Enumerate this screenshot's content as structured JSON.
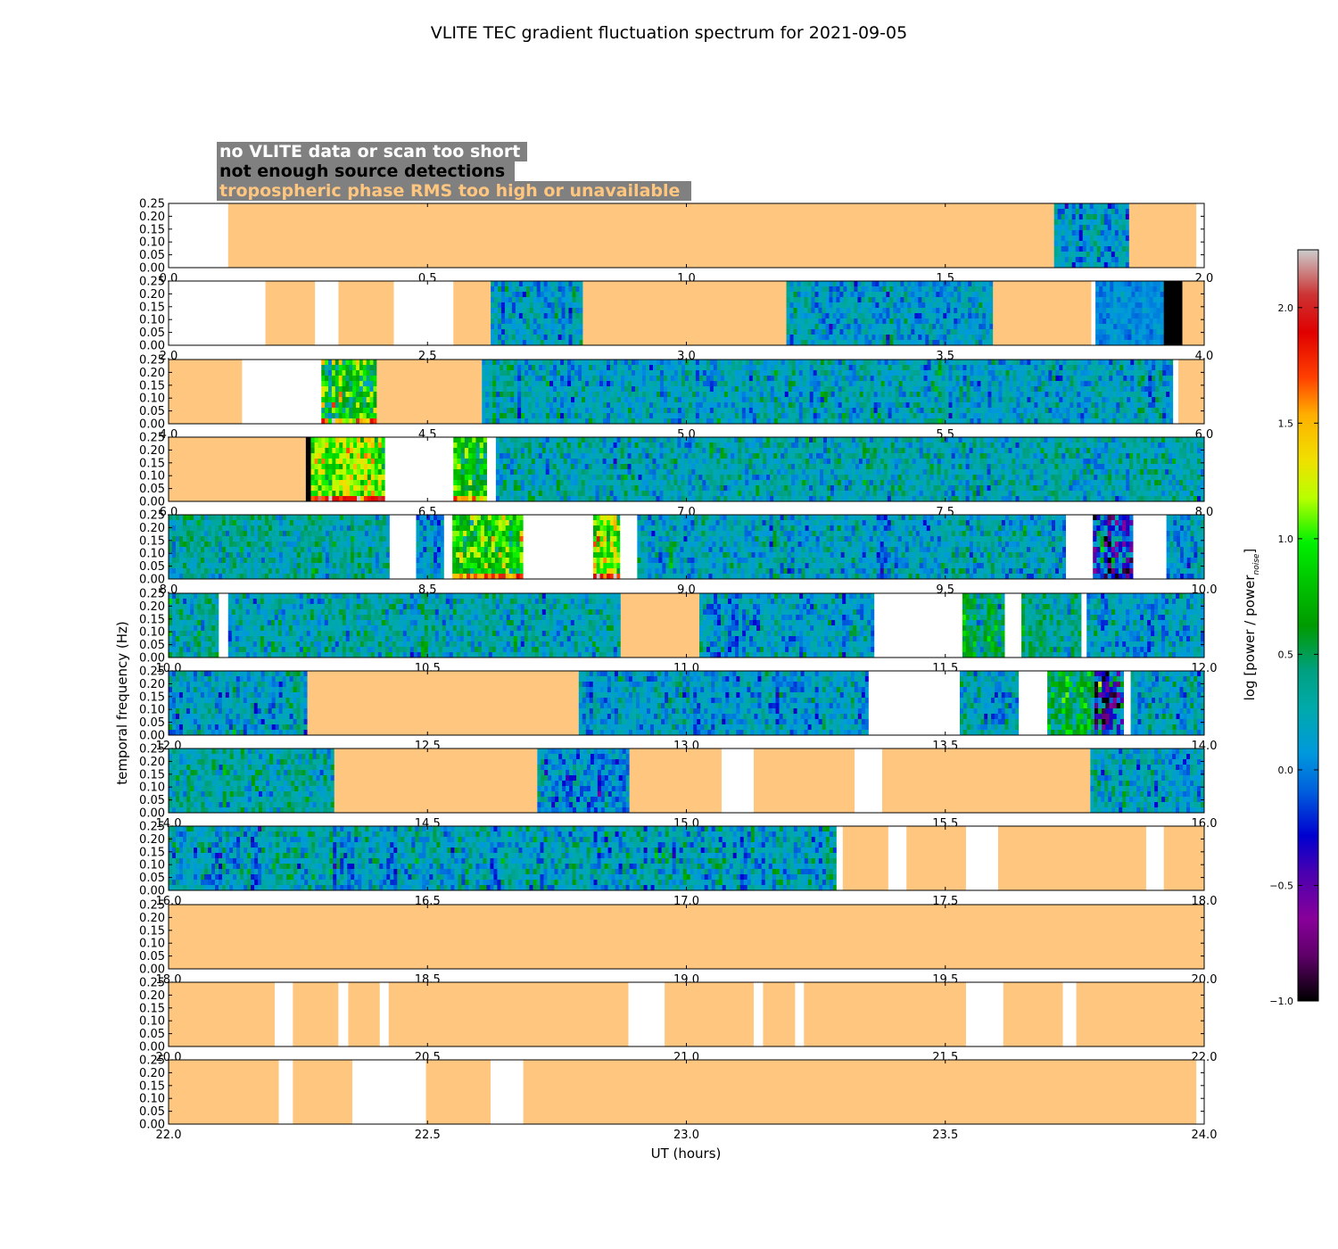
{
  "chart_data": {
    "type": "heatmap",
    "title": "VLITE TEC gradient fluctuation spectrum for 2021-09-05",
    "xlabel": "UT (hours)",
    "ylabel": "temporal frequency (Hz)",
    "colorbar_label": "log [power / power",
    "colorbar_label_sub": "noise",
    "colorbar_label_end": "]",
    "colorbar_range": [
      -1.0,
      2.25
    ],
    "colorbar_ticks": [
      "2.0",
      "1.5",
      "1.0",
      "0.5",
      "0.0",
      "−0.5",
      "−1.0"
    ],
    "colorbar_tick_values": [
      2.0,
      1.5,
      1.0,
      0.5,
      0.0,
      -0.5,
      -1.0
    ],
    "colormap": "nipy_spectral",
    "ylim": [
      0.0,
      0.25
    ],
    "y_ticks": [
      "0.00",
      "0.05",
      "0.10",
      "0.15",
      "0.20",
      "0.25"
    ],
    "legend": [
      {
        "label": "no VLITE data or scan too short",
        "color": "#ffffff"
      },
      {
        "label": "not enough source detections",
        "color": "#000000"
      },
      {
        "label": "tropospheric phase RMS too high or unavailable",
        "color": "#ffc67f"
      }
    ],
    "legend_box_color": "#808080",
    "category_colors": {
      "tropo": "#ffc67f",
      "nodet": "#000000",
      "nodata": "#ffffff"
    },
    "panels": [
      {
        "xlim": [
          0,
          2
        ],
        "ticks": [
          "0.0",
          "0.5",
          "1.0",
          "1.5",
          "2.0"
        ],
        "segments": [
          [
            "nodata",
            0.0,
            0.115
          ],
          [
            "tropo",
            0.115,
            1.71
          ],
          [
            "data",
            1.71,
            1.855,
            0.15,
            0.35
          ],
          [
            "tropo",
            1.855,
            1.985
          ],
          [
            "nodata",
            1.985,
            2.0
          ]
        ]
      },
      {
        "xlim": [
          2,
          4
        ],
        "ticks": [
          "2.0",
          "2.5",
          "3.0",
          "3.5",
          "4.0"
        ],
        "segments": [
          [
            "nodata",
            2.0,
            2.187
          ],
          [
            "tropo",
            2.187,
            2.283
          ],
          [
            "nodata",
            2.283,
            2.328
          ],
          [
            "tropo",
            2.328,
            2.435
          ],
          [
            "nodata",
            2.435,
            2.55
          ],
          [
            "tropo",
            2.55,
            2.622
          ],
          [
            "data",
            2.622,
            2.8,
            0.15,
            0.35
          ],
          [
            "tropo",
            2.8,
            3.193
          ],
          [
            "data",
            3.193,
            3.592,
            0.15,
            0.35
          ],
          [
            "tropo",
            3.592,
            3.782
          ],
          [
            "nodata",
            3.782,
            3.79
          ],
          [
            "data",
            3.79,
            3.922,
            0.05,
            0.15
          ],
          [
            "nodet",
            3.922,
            3.958
          ],
          [
            "tropo",
            3.958,
            4.0
          ]
        ]
      },
      {
        "xlim": [
          4,
          6
        ],
        "ticks": [
          "4.0",
          "4.5",
          "5.0",
          "5.5",
          "6.0"
        ],
        "segments": [
          [
            "tropo",
            4.0,
            4.142
          ],
          [
            "nodata",
            4.142,
            4.295
          ],
          [
            "data",
            4.295,
            4.402,
            0.85,
            0.6
          ],
          [
            "tropo",
            4.402,
            4.605
          ],
          [
            "data",
            4.605,
            5.94,
            0.2,
            0.35
          ],
          [
            "nodata",
            5.94,
            5.95
          ],
          [
            "tropo",
            5.95,
            6.0
          ]
        ]
      },
      {
        "xlim": [
          6,
          8
        ],
        "ticks": [
          "6.0",
          "6.5",
          "7.0",
          "7.5",
          "8.0"
        ],
        "segments": [
          [
            "tropo",
            6.0,
            6.265
          ],
          [
            "nodet",
            6.265,
            6.275
          ],
          [
            "data",
            6.275,
            6.418,
            1.1,
            0.45
          ],
          [
            "nodata",
            6.418,
            6.55
          ],
          [
            "data",
            6.55,
            6.615,
            0.75,
            0.45
          ],
          [
            "nodata",
            6.615,
            6.632
          ],
          [
            "data",
            6.632,
            8.0,
            0.25,
            0.35
          ]
        ]
      },
      {
        "xlim": [
          8,
          10
        ],
        "ticks": [
          "8.0",
          "8.5",
          "9.0",
          "9.5",
          "10.0"
        ],
        "segments": [
          [
            "data",
            8.0,
            8.427,
            0.3,
            0.35
          ],
          [
            "nodata",
            8.427,
            8.478
          ],
          [
            "data",
            8.478,
            8.532,
            0.1,
            0.35
          ],
          [
            "nodata",
            8.532,
            8.548
          ],
          [
            "data",
            8.548,
            8.685,
            0.85,
            0.5
          ],
          [
            "nodata",
            8.685,
            8.82
          ],
          [
            "data",
            8.82,
            8.872,
            1.1,
            0.5
          ],
          [
            "nodata",
            8.872,
            8.905
          ],
          [
            "data",
            8.905,
            9.733,
            0.2,
            0.35
          ],
          [
            "nodata",
            9.733,
            9.785
          ],
          [
            "data",
            9.785,
            9.863,
            -0.2,
            0.85
          ],
          [
            "nodata",
            9.863,
            9.927
          ],
          [
            "data",
            9.927,
            10.0,
            0.15,
            0.35
          ]
        ]
      },
      {
        "xlim": [
          10,
          12
        ],
        "ticks": [
          "10.0",
          "10.5",
          "11.0",
          "11.5",
          "12.0"
        ],
        "segments": [
          [
            "data",
            10.0,
            10.097,
            0.3,
            0.35
          ],
          [
            "nodata",
            10.097,
            10.115
          ],
          [
            "data",
            10.115,
            10.873,
            0.25,
            0.35
          ],
          [
            "tropo",
            10.873,
            11.025
          ],
          [
            "data",
            11.025,
            11.363,
            0.15,
            0.35
          ],
          [
            "nodata",
            11.363,
            11.533
          ],
          [
            "data",
            11.533,
            11.615,
            0.45,
            0.45
          ],
          [
            "nodata",
            11.615,
            11.647
          ],
          [
            "data",
            11.647,
            11.763,
            0.35,
            0.35
          ],
          [
            "nodata",
            11.763,
            11.773
          ],
          [
            "data",
            11.773,
            12.0,
            0.15,
            0.35
          ]
        ]
      },
      {
        "xlim": [
          12,
          14
        ],
        "ticks": [
          "12.0",
          "12.5",
          "13.0",
          "13.5",
          "14.0"
        ],
        "segments": [
          [
            "data",
            12.0,
            12.268,
            0.15,
            0.35
          ],
          [
            "tropo",
            12.268,
            12.792
          ],
          [
            "data",
            12.792,
            13.352,
            0.15,
            0.35
          ],
          [
            "nodata",
            13.352,
            13.528
          ],
          [
            "data",
            13.528,
            13.642,
            0.2,
            0.35
          ],
          [
            "nodata",
            13.642,
            13.697
          ],
          [
            "data",
            13.697,
            13.788,
            0.5,
            0.45
          ],
          [
            "data",
            13.788,
            13.845,
            -0.2,
            1.0
          ],
          [
            "nodata",
            13.845,
            13.858
          ],
          [
            "data",
            13.858,
            14.0,
            0.2,
            0.35
          ]
        ]
      },
      {
        "xlim": [
          14,
          16
        ],
        "ticks": [
          "14.0",
          "14.5",
          "15.0",
          "15.5",
          "16.0"
        ],
        "segments": [
          [
            "data",
            14.0,
            14.32,
            0.3,
            0.35
          ],
          [
            "tropo",
            14.32,
            14.712
          ],
          [
            "data",
            14.712,
            14.89,
            0.1,
            0.4
          ],
          [
            "tropo",
            14.89,
            15.068
          ],
          [
            "nodata",
            15.068,
            15.13
          ],
          [
            "tropo",
            15.13,
            15.325
          ],
          [
            "nodata",
            15.325,
            15.378
          ],
          [
            "tropo",
            15.378,
            15.78
          ],
          [
            "data",
            15.78,
            16.0,
            0.2,
            0.35
          ]
        ]
      },
      {
        "xlim": [
          16,
          18
        ],
        "ticks": [
          "16.0",
          "16.5",
          "17.0",
          "17.5",
          "18.0"
        ],
        "segments": [
          [
            "data",
            16.0,
            17.29,
            0.2,
            0.4
          ],
          [
            "nodata",
            17.29,
            17.302
          ],
          [
            "tropo",
            17.302,
            17.39
          ],
          [
            "nodata",
            17.39,
            17.425
          ],
          [
            "tropo",
            17.425,
            17.54
          ],
          [
            "nodata",
            17.54,
            17.602
          ],
          [
            "tropo",
            17.602,
            17.888
          ],
          [
            "nodata",
            17.888,
            17.922
          ],
          [
            "tropo",
            17.922,
            18.0
          ]
        ]
      },
      {
        "xlim": [
          18,
          20
        ],
        "ticks": [
          "18.0",
          "18.5",
          "19.0",
          "19.5",
          "20.0"
        ],
        "segments": [
          [
            "tropo",
            18.0,
            20.0
          ]
        ]
      },
      {
        "xlim": [
          20,
          22
        ],
        "ticks": [
          "20.0",
          "20.5",
          "21.0",
          "21.5",
          "22.0"
        ],
        "segments": [
          [
            "tropo",
            20.0,
            20.205
          ],
          [
            "nodata",
            20.205,
            20.24
          ],
          [
            "tropo",
            20.24,
            20.328
          ],
          [
            "nodata",
            20.328,
            20.347
          ],
          [
            "tropo",
            20.347,
            20.408
          ],
          [
            "nodata",
            20.408,
            20.425
          ],
          [
            "tropo",
            20.425,
            20.888
          ],
          [
            "nodata",
            20.888,
            20.958
          ],
          [
            "tropo",
            20.958,
            21.13
          ],
          [
            "nodata",
            21.13,
            21.148
          ],
          [
            "tropo",
            21.148,
            21.21
          ],
          [
            "nodata",
            21.21,
            21.227
          ],
          [
            "tropo",
            21.227,
            21.54
          ],
          [
            "nodata",
            21.54,
            21.612
          ],
          [
            "tropo",
            21.612,
            21.727
          ],
          [
            "nodata",
            21.727,
            21.753
          ],
          [
            "tropo",
            21.753,
            22.0
          ]
        ]
      },
      {
        "xlim": [
          22,
          24
        ],
        "ticks": [
          "22.0",
          "22.5",
          "23.0",
          "23.5",
          "24.0"
        ],
        "segments": [
          [
            "tropo",
            22.0,
            22.213
          ],
          [
            "nodata",
            22.213,
            22.24
          ],
          [
            "tropo",
            22.24,
            22.355
          ],
          [
            "nodata",
            22.355,
            22.497
          ],
          [
            "tropo",
            22.497,
            22.622
          ],
          [
            "nodata",
            22.622,
            22.685
          ],
          [
            "tropo",
            22.685,
            23.985
          ],
          [
            "nodata",
            23.985,
            24.0
          ]
        ]
      }
    ]
  }
}
